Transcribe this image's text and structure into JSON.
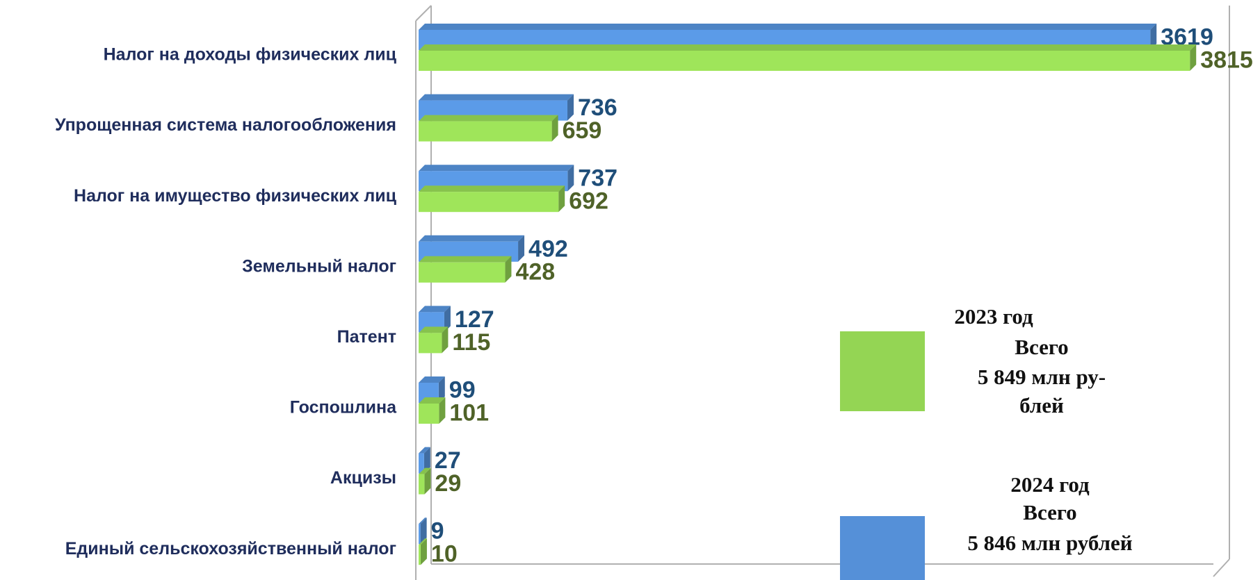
{
  "chart_data": {
    "type": "bar",
    "orientation": "horizontal",
    "categories": [
      "Налог на доходы физических лиц",
      "Упрощенная система налогообложения",
      "Налог на имущество физических лиц",
      "Земельный налог",
      "Патент",
      "Госпошлина",
      "Акцизы",
      "Единый сельскохозяйственный налог"
    ],
    "series": [
      {
        "name": "2024 год",
        "color": "#5b9be8",
        "label_color": "#1f4e79",
        "values": [
          3619,
          736,
          737,
          492,
          127,
          99,
          27,
          9
        ],
        "legend_notes": [
          "Всего",
          "5 846 млн рублей"
        ]
      },
      {
        "name": "2023 год",
        "color": "#9fe55a",
        "label_color": "#4f6228",
        "values": [
          3815,
          659,
          692,
          428,
          115,
          101,
          29,
          10
        ],
        "legend_notes": [
          "Всего",
          "5 849 млн ру-",
          "блей"
        ]
      }
    ],
    "xlim": [
      0,
      4000
    ]
  }
}
